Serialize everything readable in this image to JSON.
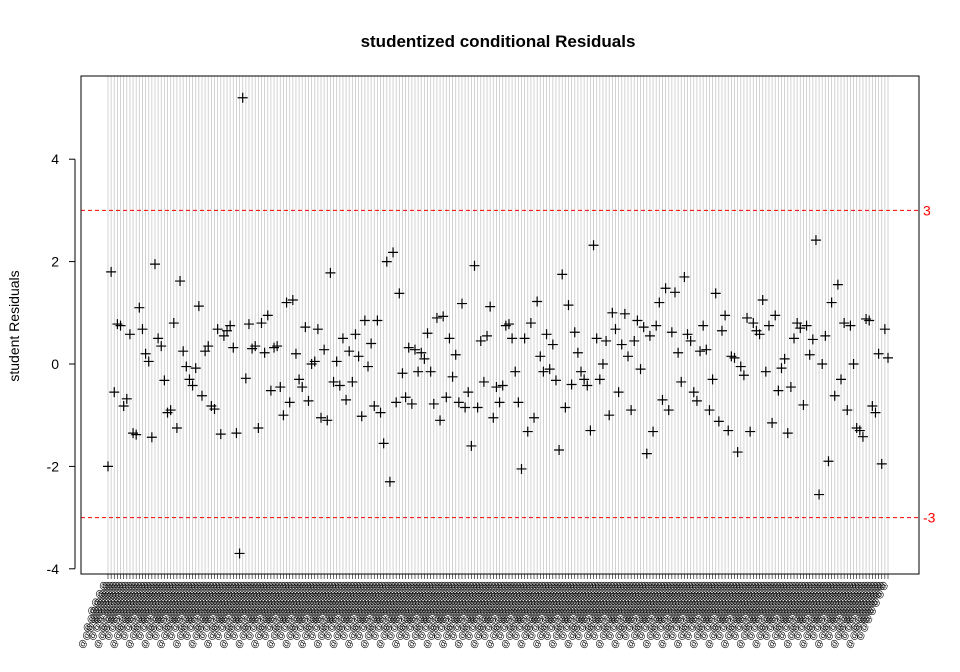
{
  "chart_data": {
    "type": "scatter",
    "title": "studentized conditional Residuals",
    "xlabel": "",
    "ylabel": "student Residuals",
    "ylim": [
      -4.2,
      5.5
    ],
    "yticks": [
      -4,
      -2,
      0,
      2,
      4
    ],
    "grid": "vertical lines at each observation",
    "marker": "plus",
    "marker_color": "#000000",
    "reference_lines": [
      {
        "value": 3,
        "label": "3",
        "color": "#ff0000",
        "style": "dashed"
      },
      {
        "value": -3,
        "label": "-3",
        "color": "#ff0000",
        "style": "dashed"
      }
    ],
    "x_tick_label_char": "@",
    "series": [
      {
        "values": [
          -2.0,
          1.8,
          -0.55,
          0.78,
          0.75,
          -0.82,
          -0.68,
          0.58,
          -1.35,
          -1.38,
          1.1,
          0.68,
          0.2,
          0.05,
          -1.43,
          1.95,
          0.5,
          0.35,
          -0.32,
          -0.95,
          -0.9,
          0.8,
          -1.25,
          1.62,
          0.25,
          -0.05,
          -0.3,
          -0.42,
          -0.08,
          1.13,
          -0.62,
          0.25,
          0.35,
          -0.82,
          -0.88,
          0.68,
          -1.37,
          0.55,
          0.65,
          0.75,
          0.32,
          -1.35,
          -3.7,
          5.2,
          -0.28,
          0.78,
          0.3,
          0.35,
          -1.25,
          0.8,
          0.22,
          0.95,
          -0.52,
          0.32,
          0.35,
          -0.45,
          -1.0,
          1.2,
          -0.75,
          1.25,
          0.2,
          -0.3,
          -0.45,
          0.72,
          -0.72,
          0.0,
          0.05,
          0.68,
          -1.05,
          0.28,
          -1.1,
          1.78,
          -0.35,
          0.05,
          -0.42,
          0.5,
          -0.7,
          0.25,
          -0.35,
          0.58,
          0.15,
          -1.02,
          0.85,
          -0.05,
          0.4,
          -0.82,
          0.85,
          -0.95,
          -1.55,
          2.0,
          -2.3,
          2.18,
          -0.75,
          1.38,
          -0.18,
          -0.65,
          0.32,
          -0.78,
          0.28,
          -0.15,
          0.22,
          0.1,
          0.6,
          -0.15,
          -0.78,
          0.9,
          -1.1,
          0.93,
          -0.65,
          0.5,
          -0.25,
          0.18,
          -0.75,
          1.18,
          -0.85,
          -0.55,
          -1.6,
          1.92,
          -0.85,
          0.45,
          -0.35,
          0.55,
          1.12,
          -1.05,
          -0.45,
          -0.75,
          -0.42,
          0.75,
          0.78,
          0.5,
          -0.15,
          -0.75,
          -2.05,
          0.5,
          -1.32,
          0.8,
          -1.05,
          1.22,
          0.15,
          -0.15,
          0.58,
          -0.1,
          0.38,
          -0.32,
          -1.68,
          1.75,
          -0.85,
          1.15,
          -0.4,
          0.62,
          0.22,
          -0.15,
          -0.3,
          -0.42,
          -1.3,
          2.32,
          0.5,
          -0.3,
          0.0,
          0.45,
          -1.0,
          1.0,
          0.68,
          -0.55,
          0.38,
          0.98,
          0.15,
          -0.9,
          0.45,
          0.85,
          -0.1,
          0.72,
          -1.75,
          0.55,
          -1.32,
          0.75,
          1.2,
          -0.7,
          1.48,
          -0.9,
          0.62,
          1.4,
          0.22,
          -0.35,
          1.7,
          0.58,
          0.45,
          -0.55,
          -0.72,
          0.25,
          0.75,
          0.28,
          -0.9,
          -0.3,
          1.38,
          -1.12,
          0.65,
          0.95,
          -1.3,
          0.15,
          0.12,
          -1.72,
          -0.05,
          -0.22,
          0.9,
          -1.32,
          0.8,
          0.65,
          0.58,
          1.25,
          -0.15,
          0.75,
          -1.15,
          0.95,
          -0.52,
          -0.08,
          0.1,
          -1.35,
          -0.45,
          0.5,
          0.8,
          0.7,
          -0.8,
          0.75,
          0.18,
          0.48,
          2.42,
          -2.55,
          0.0,
          0.55,
          -1.9,
          1.2,
          -0.62,
          1.55,
          -0.3,
          0.8,
          -0.9,
          0.75,
          0.0,
          -1.25,
          -1.3,
          -1.42,
          0.88,
          0.85,
          -0.82,
          -0.95,
          0.2,
          -1.95,
          0.68,
          0.12
        ]
      }
    ]
  }
}
